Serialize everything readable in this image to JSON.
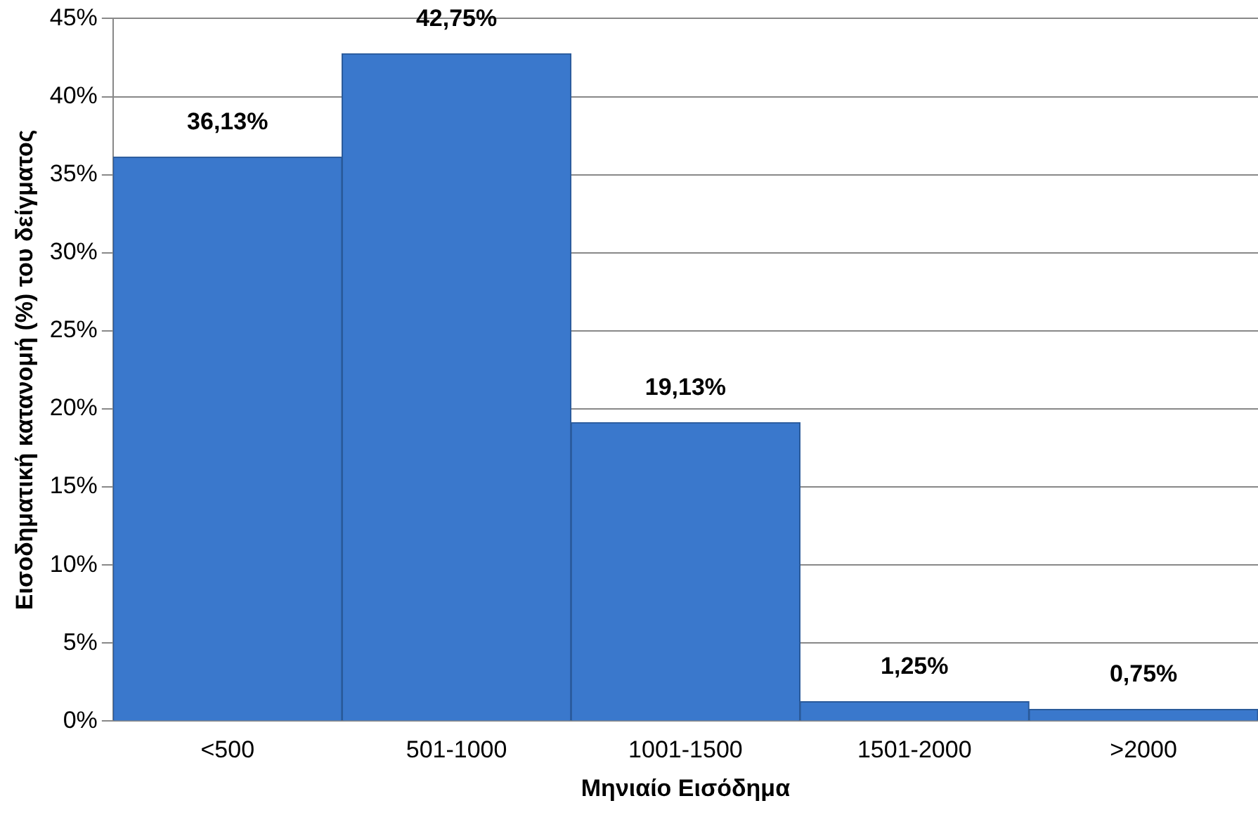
{
  "chart_data": {
    "type": "bar",
    "xlabel": "Μηνιαίο Εισόδημα",
    "ylabel": "Εισοδηματική κατανομή (%) του δείγματος",
    "categories": [
      "<500",
      "501-1000",
      "1001-1500",
      "1501-2000",
      ">2000"
    ],
    "values": [
      36.13,
      42.75,
      19.13,
      1.25,
      0.75
    ],
    "value_labels": [
      "36,13%",
      "42,75%",
      "19,13%",
      "1,25%",
      "0,75%"
    ],
    "color": "#3a78cc",
    "ylim": [
      0,
      45
    ],
    "yticks": [
      {
        "value": 0,
        "label": "0%"
      },
      {
        "value": 5,
        "label": "5%"
      },
      {
        "value": 10,
        "label": "10%"
      },
      {
        "value": 15,
        "label": "15%"
      },
      {
        "value": 20,
        "label": "20%"
      },
      {
        "value": 25,
        "label": "25%"
      },
      {
        "value": 30,
        "label": "30%"
      },
      {
        "value": 35,
        "label": "35%"
      },
      {
        "value": 40,
        "label": "40%"
      },
      {
        "value": 45,
        "label": "45%"
      }
    ],
    "grid": "y"
  }
}
